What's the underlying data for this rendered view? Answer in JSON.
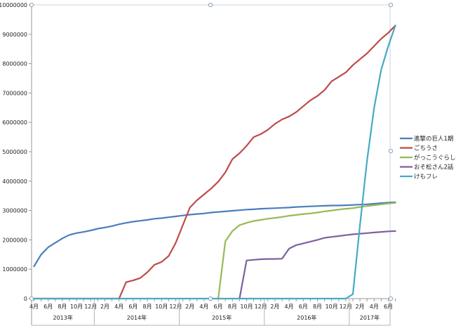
{
  "chart_data": {
    "type": "line",
    "title": "",
    "xlabel": "",
    "ylabel": "",
    "ylim": [
      0,
      10000000
    ],
    "yticks": [
      0,
      1000000,
      2000000,
      3000000,
      4000000,
      5000000,
      6000000,
      7000000,
      8000000,
      9000000,
      10000000
    ],
    "grid": false,
    "legend_position": "right",
    "x": [
      "2013-04",
      "2013-05",
      "2013-06",
      "2013-07",
      "2013-08",
      "2013-09",
      "2013-10",
      "2013-11",
      "2013-12",
      "2014-01",
      "2014-02",
      "2014-03",
      "2014-04",
      "2014-05",
      "2014-06",
      "2014-07",
      "2014-08",
      "2014-09",
      "2014-10",
      "2014-11",
      "2014-12",
      "2015-01",
      "2015-02",
      "2015-03",
      "2015-04",
      "2015-05",
      "2015-06",
      "2015-07",
      "2015-08",
      "2015-09",
      "2015-10",
      "2015-11",
      "2015-12",
      "2016-01",
      "2016-02",
      "2016-03",
      "2016-04",
      "2016-05",
      "2016-06",
      "2016-07",
      "2016-08",
      "2016-09",
      "2016-10",
      "2016-11",
      "2016-12",
      "2017-01",
      "2017-02",
      "2017-03",
      "2017-04",
      "2017-05",
      "2017-06",
      "2017-07"
    ],
    "month_tick_labels": [
      {
        "month": "2013-04",
        "label": "4月"
      },
      {
        "month": "2013-06",
        "label": "6月"
      },
      {
        "month": "2013-08",
        "label": "8月"
      },
      {
        "month": "2013-10",
        "label": "10月"
      },
      {
        "month": "2013-12",
        "label": "12月"
      },
      {
        "month": "2014-02",
        "label": "2月"
      },
      {
        "month": "2014-04",
        "label": "4月"
      },
      {
        "month": "2014-06",
        "label": "6月"
      },
      {
        "month": "2014-08",
        "label": "8月"
      },
      {
        "month": "2014-10",
        "label": "10月"
      },
      {
        "month": "2014-12",
        "label": "12月"
      },
      {
        "month": "2015-02",
        "label": "2月"
      },
      {
        "month": "2015-04",
        "label": "4月"
      },
      {
        "month": "2015-06",
        "label": "6月"
      },
      {
        "month": "2015-08",
        "label": "8月"
      },
      {
        "month": "2015-10",
        "label": "10月"
      },
      {
        "month": "2015-12",
        "label": "12月"
      },
      {
        "month": "2016-02",
        "label": "2月"
      },
      {
        "month": "2016-04",
        "label": "4月"
      },
      {
        "month": "2016-06",
        "label": "6月"
      },
      {
        "month": "2016-08",
        "label": "8月"
      },
      {
        "month": "2016-10",
        "label": "10月"
      },
      {
        "month": "2016-12",
        "label": "12月"
      },
      {
        "month": "2017-02",
        "label": "2月"
      },
      {
        "month": "2017-04",
        "label": "4月"
      },
      {
        "month": "2017-06",
        "label": "6月"
      }
    ],
    "year_labels": [
      {
        "label": "2013年",
        "from": "2013-04",
        "to": "2013-12"
      },
      {
        "label": "2014年",
        "from": "2014-01",
        "to": "2014-12"
      },
      {
        "label": "2015年",
        "from": "2015-01",
        "to": "2015-12"
      },
      {
        "label": "2016年",
        "from": "2016-01",
        "to": "2016-12"
      },
      {
        "label": "2017年",
        "from": "2017-01",
        "to": "2017-07"
      }
    ],
    "series": [
      {
        "name": "進撃の巨人1期",
        "color": "#4a7ebb",
        "values": [
          1100000,
          1500000,
          1750000,
          1900000,
          2050000,
          2170000,
          2230000,
          2270000,
          2320000,
          2380000,
          2420000,
          2470000,
          2530000,
          2580000,
          2620000,
          2650000,
          2680000,
          2720000,
          2740000,
          2770000,
          2800000,
          2830000,
          2860000,
          2880000,
          2900000,
          2930000,
          2950000,
          2970000,
          2990000,
          3010000,
          3030000,
          3040000,
          3060000,
          3070000,
          3080000,
          3090000,
          3100000,
          3120000,
          3130000,
          3140000,
          3150000,
          3160000,
          3170000,
          3170000,
          3180000,
          3190000,
          3200000,
          3210000,
          3230000,
          3250000,
          3270000,
          3280000
        ]
      },
      {
        "name": "ごちうさ",
        "color": "#be4b48",
        "values": [
          0,
          0,
          0,
          0,
          0,
          0,
          0,
          0,
          0,
          0,
          0,
          0,
          0,
          560000,
          620000,
          700000,
          900000,
          1150000,
          1250000,
          1450000,
          1900000,
          2500000,
          3100000,
          3350000,
          3550000,
          3750000,
          3980000,
          4300000,
          4750000,
          4950000,
          5200000,
          5500000,
          5600000,
          5750000,
          5950000,
          6100000,
          6200000,
          6350000,
          6550000,
          6750000,
          6900000,
          7100000,
          7400000,
          7550000,
          7700000,
          7950000,
          8150000,
          8350000,
          8600000,
          8850000,
          9050000,
          9300000
        ]
      },
      {
        "name": "がっこうぐらし！",
        "color": "#98b954",
        "values": [
          null,
          null,
          null,
          null,
          null,
          null,
          null,
          null,
          null,
          null,
          null,
          null,
          null,
          null,
          null,
          null,
          null,
          null,
          null,
          null,
          null,
          null,
          null,
          null,
          null,
          null,
          0,
          1950000,
          2300000,
          2500000,
          2580000,
          2640000,
          2680000,
          2720000,
          2750000,
          2780000,
          2820000,
          2850000,
          2880000,
          2900000,
          2930000,
          2970000,
          3000000,
          3030000,
          3060000,
          3080000,
          3120000,
          3150000,
          3180000,
          3210000,
          3240000,
          3260000
        ]
      },
      {
        "name": "おそ松さん2話",
        "color": "#7d60a0",
        "values": [
          null,
          null,
          null,
          null,
          null,
          null,
          null,
          null,
          null,
          null,
          null,
          null,
          null,
          null,
          null,
          null,
          null,
          null,
          null,
          null,
          null,
          null,
          null,
          null,
          null,
          null,
          null,
          null,
          null,
          0,
          1300000,
          1320000,
          1340000,
          1350000,
          1350000,
          1360000,
          1700000,
          1820000,
          1880000,
          1940000,
          2000000,
          2070000,
          2100000,
          2130000,
          2160000,
          2190000,
          2210000,
          2230000,
          2250000,
          2270000,
          2290000,
          2300000
        ]
      },
      {
        "name": "けもフレ",
        "color": "#46aac4",
        "values": [
          0,
          0,
          0,
          0,
          0,
          0,
          0,
          0,
          0,
          0,
          0,
          0,
          0,
          0,
          0,
          0,
          0,
          0,
          0,
          0,
          0,
          0,
          0,
          0,
          0,
          0,
          0,
          0,
          0,
          0,
          0,
          0,
          0,
          0,
          0,
          0,
          0,
          0,
          0,
          0,
          0,
          0,
          0,
          0,
          0,
          150000,
          2500000,
          4700000,
          6500000,
          7800000,
          8600000,
          9300000
        ]
      }
    ]
  }
}
